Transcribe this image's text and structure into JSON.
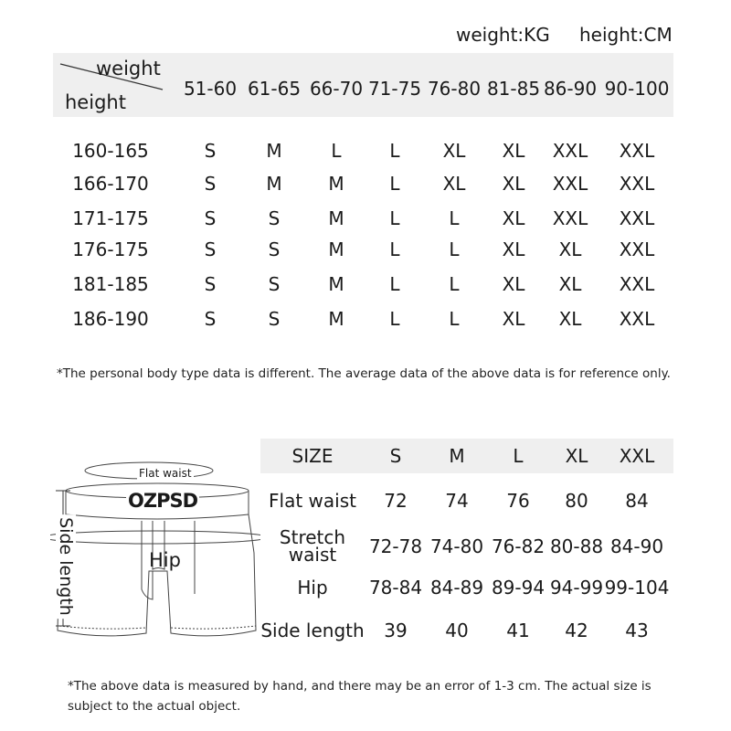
{
  "units": {
    "weight": "weight:KG",
    "height": "height:CM"
  },
  "size_table": {
    "corner_top": "weight",
    "corner_bottom": "height",
    "weights": [
      "51-60",
      "61-65",
      "66-70",
      "71-75",
      "76-80",
      "81-85",
      "86-90",
      "90-100"
    ],
    "rows": [
      {
        "height": "160-165",
        "sizes": [
          "S",
          "M",
          "L",
          "L",
          "XL",
          "XL",
          "XXL",
          "XXL"
        ]
      },
      {
        "height": "166-170",
        "sizes": [
          "S",
          "M",
          "M",
          "L",
          "XL",
          "XL",
          "XXL",
          "XXL"
        ]
      },
      {
        "height": "171-175",
        "sizes": [
          "S",
          "S",
          "M",
          "L",
          "L",
          "XL",
          "XXL",
          "XXL"
        ]
      },
      {
        "height": "176-175",
        "sizes": [
          "S",
          "S",
          "M",
          "L",
          "L",
          "XL",
          "XL",
          "XXL"
        ]
      },
      {
        "height": "181-185",
        "sizes": [
          "S",
          "S",
          "M",
          "L",
          "L",
          "XL",
          "XL",
          "XXL"
        ]
      },
      {
        "height": "186-190",
        "sizes": [
          "S",
          "S",
          "M",
          "L",
          "L",
          "XL",
          "XL",
          "XXL"
        ]
      }
    ]
  },
  "note1": "*The personal body type data is different. The average data of the above data is for reference only.",
  "diagram": {
    "flat_waist": "Flat waist",
    "brand": "OZPSD",
    "hip": "Hip",
    "side_length": "Side length"
  },
  "measure_table": {
    "header": [
      "SIZE",
      "S",
      "M",
      "L",
      "XL",
      "XXL"
    ],
    "rows": [
      {
        "label": "Flat waist",
        "values": [
          "72",
          "74",
          "76",
          "80",
          "84"
        ]
      },
      {
        "label": "Stretch waist",
        "values": [
          "72-78",
          "74-80",
          "76-82",
          "80-88",
          "84-90"
        ]
      },
      {
        "label": "Hip",
        "values": [
          "78-84",
          "84-89",
          "89-94",
          "94-99",
          "99-104"
        ]
      },
      {
        "label": "Side length",
        "values": [
          "39",
          "40",
          "41",
          "42",
          "43"
        ]
      }
    ]
  },
  "note2": "*The above data is measured by hand, and there may be an error of 1-3 cm. The actual size is subject to the actual object."
}
